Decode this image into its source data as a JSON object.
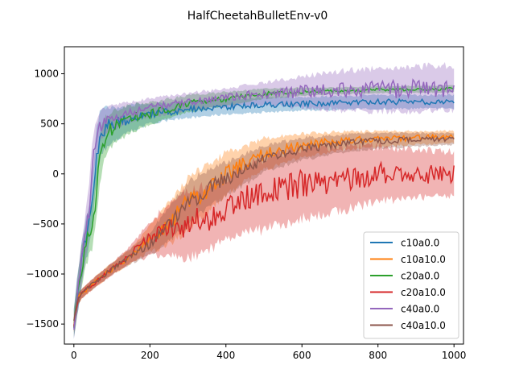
{
  "chart_data": {
    "type": "line",
    "title": "HalfCheetahBulletEnv-v0",
    "xlabel": "",
    "ylabel": "",
    "xlim": [
      -25,
      1025
    ],
    "ylim": [
      -1700,
      1270
    ],
    "xticks": [
      0,
      200,
      400,
      600,
      800,
      1000
    ],
    "yticks": [
      -1500,
      -1000,
      -500,
      0,
      500,
      1000
    ],
    "grid": false,
    "legend": "lower-right",
    "series": [
      {
        "name": "c10a0.0",
        "color": "#1f77b4",
        "x": [
          0,
          10,
          20,
          30,
          40,
          50,
          60,
          70,
          80,
          100,
          120,
          150,
          200,
          250,
          300,
          350,
          400,
          500,
          600,
          700,
          800,
          900,
          1000
        ],
        "values": [
          -1500,
          -1200,
          -900,
          -700,
          -500,
          -200,
          200,
          400,
          450,
          500,
          520,
          560,
          600,
          620,
          640,
          660,
          670,
          690,
          700,
          710,
          720,
          720,
          720
        ],
        "band": [
          180,
          220,
          240,
          240,
          260,
          280,
          300,
          280,
          240,
          200,
          180,
          150,
          120,
          100,
          100,
          90,
          90,
          90,
          80,
          80,
          80,
          80,
          80
        ]
      },
      {
        "name": "c10a10.0",
        "color": "#ff7f0e",
        "x": [
          0,
          10,
          20,
          50,
          100,
          150,
          200,
          250,
          300,
          350,
          400,
          450,
          500,
          600,
          700,
          800,
          900,
          1000
        ],
        "values": [
          -1500,
          -1250,
          -1200,
          -1100,
          -950,
          -820,
          -650,
          -500,
          -300,
          -150,
          0,
          100,
          200,
          280,
          330,
          350,
          360,
          370
        ],
        "band": [
          100,
          60,
          60,
          60,
          70,
          90,
          150,
          250,
          300,
          280,
          250,
          200,
          180,
          140,
          110,
          90,
          80,
          70
        ]
      },
      {
        "name": "c20a0.0",
        "color": "#2ca02c",
        "x": [
          0,
          10,
          20,
          30,
          40,
          50,
          60,
          70,
          80,
          100,
          150,
          200,
          300,
          400,
          500,
          600,
          700,
          800,
          900,
          1000
        ],
        "values": [
          -1500,
          -1200,
          -950,
          -750,
          -600,
          -500,
          -150,
          200,
          350,
          450,
          550,
          600,
          700,
          750,
          800,
          820,
          830,
          840,
          845,
          850
        ],
        "band": [
          180,
          220,
          240,
          240,
          240,
          260,
          300,
          280,
          240,
          200,
          160,
          130,
          100,
          80,
          60,
          50,
          40,
          40,
          40,
          40
        ]
      },
      {
        "name": "c20a10.0",
        "color": "#d62728",
        "x": [
          0,
          10,
          20,
          50,
          100,
          150,
          200,
          250,
          300,
          350,
          400,
          450,
          500,
          600,
          700,
          800,
          900,
          1000
        ],
        "values": [
          -1500,
          -1250,
          -1200,
          -1100,
          -950,
          -800,
          -650,
          -550,
          -500,
          -450,
          -350,
          -250,
          -200,
          -100,
          -50,
          0,
          0,
          0
        ],
        "band": [
          100,
          60,
          60,
          60,
          70,
          100,
          200,
          300,
          400,
          380,
          350,
          400,
          420,
          400,
          380,
          320,
          280,
          260
        ]
      },
      {
        "name": "c40a0.0",
        "color": "#9467bd",
        "x": [
          0,
          10,
          20,
          30,
          40,
          50,
          60,
          70,
          80,
          100,
          150,
          200,
          300,
          400,
          500,
          600,
          700,
          800,
          900,
          1000
        ],
        "values": [
          -1500,
          -1200,
          -900,
          -650,
          -350,
          150,
          380,
          480,
          520,
          560,
          620,
          660,
          720,
          760,
          800,
          820,
          830,
          840,
          850,
          860
        ],
        "band": [
          180,
          220,
          260,
          300,
          300,
          280,
          200,
          180,
          160,
          140,
          120,
          110,
          100,
          110,
          130,
          180,
          230,
          250,
          260,
          260
        ]
      },
      {
        "name": "c40a10.0",
        "color": "#8c564b",
        "x": [
          0,
          10,
          20,
          50,
          100,
          150,
          200,
          250,
          300,
          350,
          400,
          450,
          500,
          600,
          700,
          800,
          900,
          1000
        ],
        "values": [
          -1500,
          -1250,
          -1200,
          -1100,
          -950,
          -820,
          -700,
          -500,
          -300,
          -150,
          -50,
          50,
          150,
          250,
          300,
          330,
          340,
          350
        ],
        "band": [
          100,
          60,
          60,
          60,
          70,
          90,
          130,
          200,
          250,
          220,
          200,
          180,
          160,
          130,
          110,
          90,
          80,
          70
        ]
      }
    ]
  }
}
